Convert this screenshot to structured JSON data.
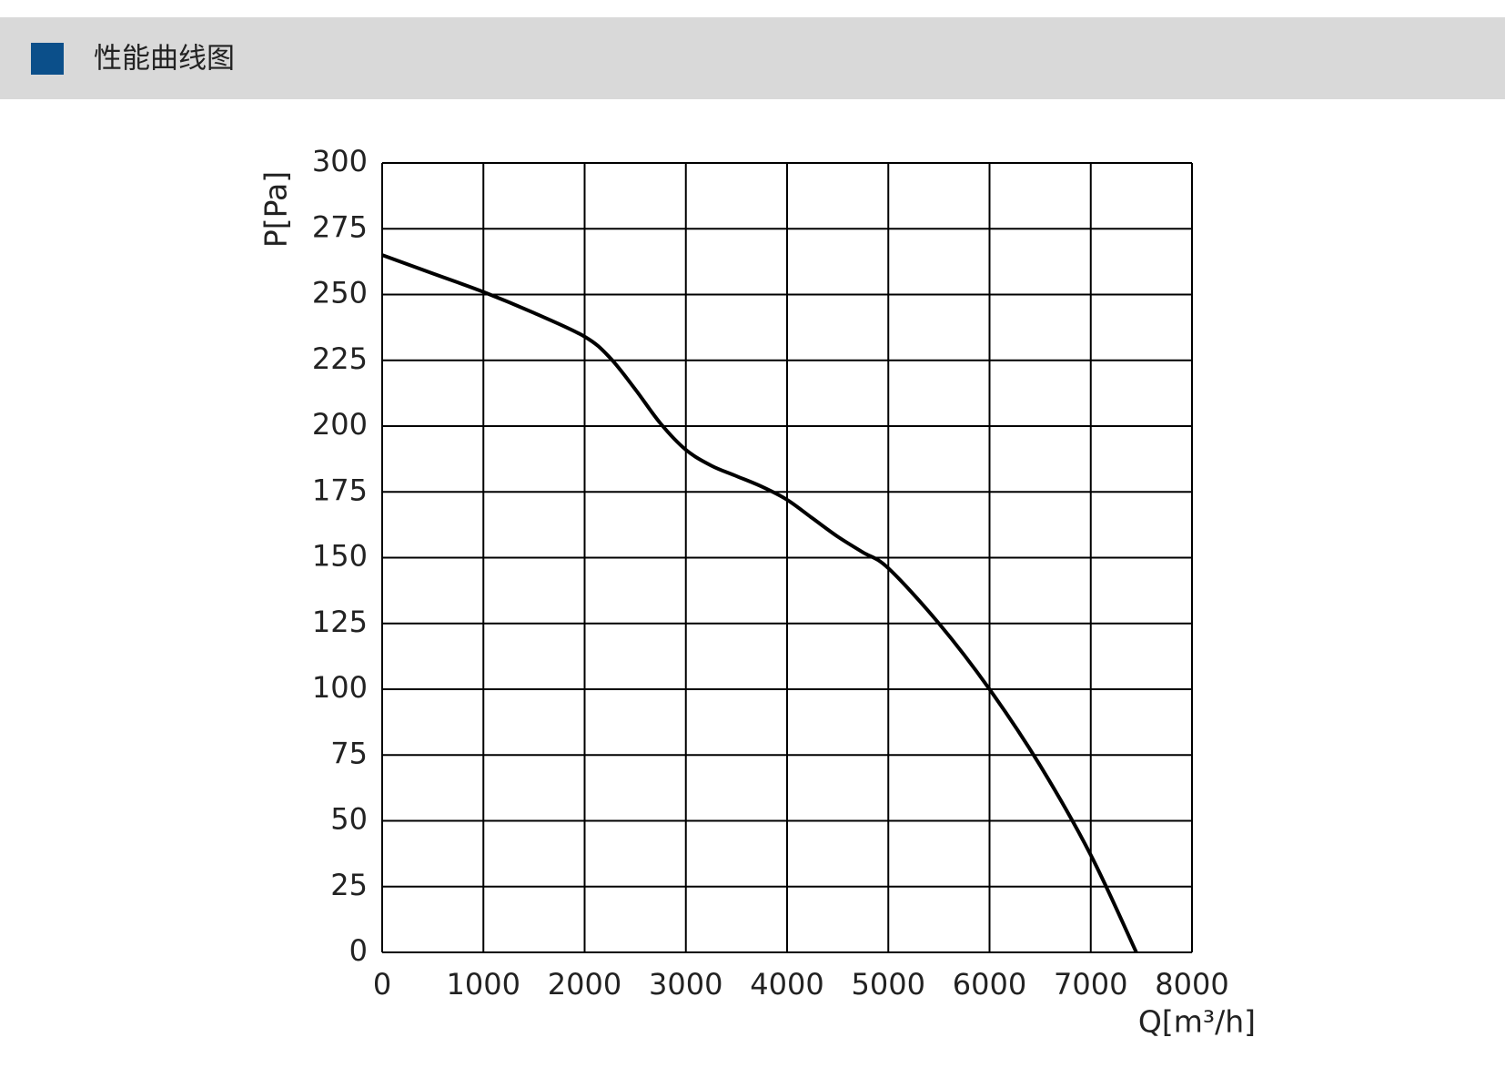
{
  "chart_data": {
    "type": "line",
    "title": "性能曲线图",
    "x_label": "Q[m³/h]",
    "y_label": "P[Pa]",
    "x": [
      0,
      500,
      1000,
      1500,
      2000,
      2250,
      2500,
      2750,
      3000,
      3250,
      3500,
      3750,
      4000,
      4250,
      4500,
      4750,
      5000,
      5500,
      6000,
      6500,
      7000,
      7450
    ],
    "values": [
      265,
      258,
      251,
      243,
      234,
      226,
      214,
      201,
      191,
      185,
      181,
      177,
      172,
      165,
      158,
      152,
      146,
      125,
      100,
      71,
      37,
      0
    ],
    "color": "#000000",
    "xlim": [
      0,
      8000
    ],
    "xticks": [
      0,
      1000,
      2000,
      3000,
      4000,
      5000,
      6000,
      7000,
      8000
    ],
    "ylim": [
      0,
      300
    ],
    "yticks": [
      0,
      25,
      50,
      75,
      100,
      125,
      150,
      175,
      200,
      225,
      250,
      275,
      300
    ],
    "grid": true
  }
}
